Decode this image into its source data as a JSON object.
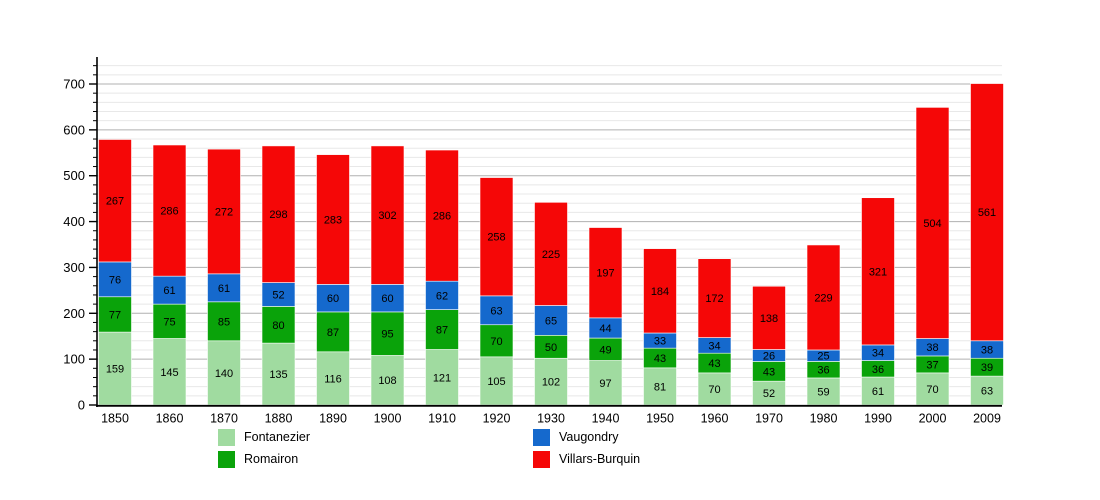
{
  "chart_data": {
    "type": "bar",
    "stacked": true,
    "title": "",
    "xlabel": "",
    "ylabel": "",
    "categories": [
      "1850",
      "1860",
      "1870",
      "1880",
      "1890",
      "1900",
      "1910",
      "1920",
      "1930",
      "1940",
      "1950",
      "1960",
      "1970",
      "1980",
      "1990",
      "2000",
      "2009"
    ],
    "series": [
      {
        "name": "Fontanezier",
        "color": "#a0dba0",
        "values": [
          159,
          145,
          140,
          135,
          116,
          108,
          121,
          105,
          102,
          97,
          81,
          70,
          52,
          59,
          61,
          70,
          63
        ]
      },
      {
        "name": "Romairon",
        "color": "#0aa30a",
        "values": [
          77,
          75,
          85,
          80,
          87,
          95,
          87,
          70,
          50,
          49,
          43,
          43,
          43,
          36,
          36,
          37,
          39
        ]
      },
      {
        "name": "Vaugondry",
        "color": "#1569cd",
        "values": [
          76,
          61,
          61,
          52,
          60,
          60,
          62,
          63,
          65,
          44,
          33,
          34,
          26,
          25,
          34,
          38,
          38
        ]
      },
      {
        "name": "Villars-Burquin",
        "color": "#f50707",
        "values": [
          267,
          286,
          272,
          298,
          283,
          302,
          286,
          258,
          225,
          197,
          184,
          172,
          138,
          229,
          321,
          504,
          561
        ]
      }
    ],
    "ylim": [
      0,
      758
    ],
    "y_major_ticks": [
      0,
      100,
      200,
      300,
      400,
      500,
      600,
      700
    ],
    "y_minor_step": 20,
    "y_minor_max": 740,
    "grid": "on",
    "legend_position": "bottom",
    "colors": {
      "major_grid": "#b0b0b0",
      "minor_grid": "#e8e8e8",
      "axis": "#000000",
      "label_text": "#000000"
    }
  }
}
